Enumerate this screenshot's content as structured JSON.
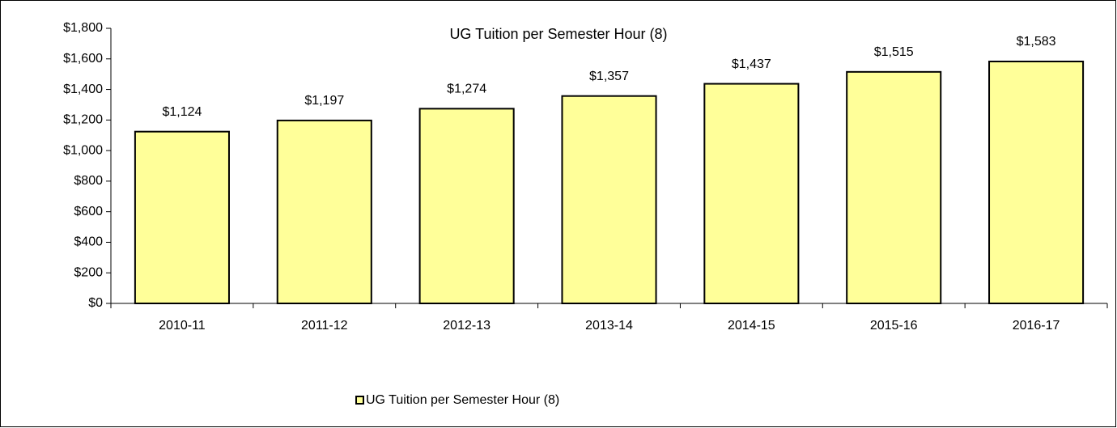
{
  "chart_data": {
    "type": "bar",
    "title": "UG Tuition per Semester Hour (8)",
    "categories": [
      "2010-11",
      "2011-12",
      "2012-13",
      "2013-14",
      "2014-15",
      "2015-16",
      "2016-17"
    ],
    "series": [
      {
        "name": "UG Tuition per Semester Hour (8)",
        "color": "#ffff99",
        "values": [
          1124,
          1197,
          1274,
          1357,
          1437,
          1515,
          1583
        ],
        "value_labels": [
          "$1,124",
          "$1,197",
          "$1,274",
          "$1,357",
          "$1,437",
          "$1,515",
          "$1,583"
        ]
      }
    ],
    "ylim": [
      0,
      1800
    ],
    "yticks": [
      {
        "value": 0,
        "label": "$0"
      },
      {
        "value": 200,
        "label": "$200"
      },
      {
        "value": 400,
        "label": "$400"
      },
      {
        "value": 600,
        "label": "$600"
      },
      {
        "value": 800,
        "label": "$800"
      },
      {
        "value": 1000,
        "label": "$1,000"
      },
      {
        "value": 1200,
        "label": "$1,200"
      },
      {
        "value": 1400,
        "label": "$1,400"
      },
      {
        "value": 1600,
        "label": "$1,600"
      },
      {
        "value": 1800,
        "label": "$1,800"
      }
    ],
    "grid": false,
    "legend": "bottom"
  }
}
